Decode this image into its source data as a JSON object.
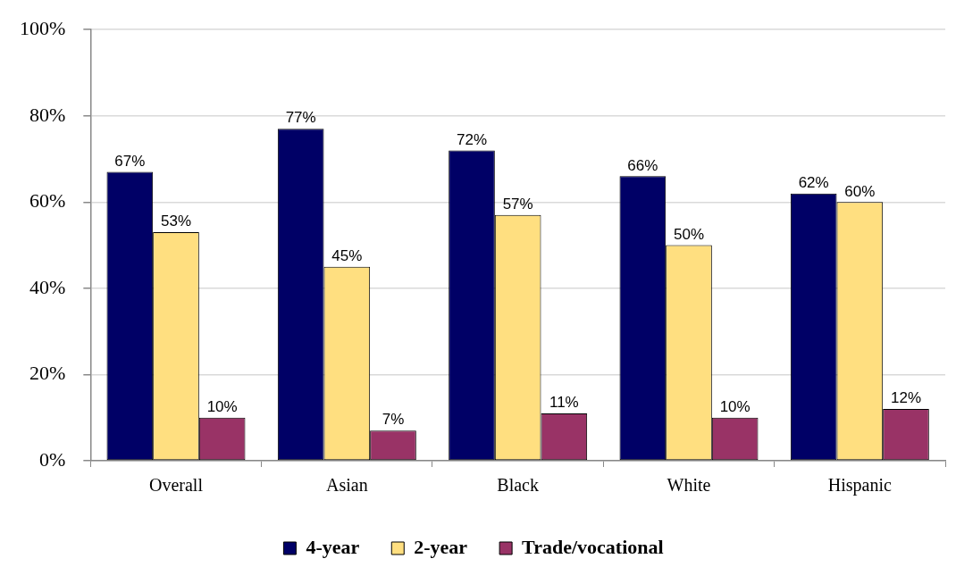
{
  "chart_data": {
    "type": "bar",
    "categories": [
      "Overall",
      "Asian",
      "Black",
      "White",
      "Hispanic"
    ],
    "series": [
      {
        "name": "4-year",
        "color": "#000066",
        "values": [
          67,
          77,
          72,
          66,
          62
        ],
        "value_labels": [
          "67%",
          "77%",
          "72%",
          "66%",
          "62%"
        ]
      },
      {
        "name": "2-year",
        "color": "#ffdf80",
        "values": [
          53,
          45,
          57,
          50,
          60
        ],
        "value_labels": [
          "53%",
          "45%",
          "57%",
          "50%",
          "60%"
        ]
      },
      {
        "name": "Trade/vocational",
        "color": "#993366",
        "values": [
          10,
          7,
          11,
          10,
          12
        ],
        "value_labels": [
          "10%",
          "7%",
          "11%",
          "10%",
          "12%"
        ]
      }
    ],
    "ylim": [
      0,
      100
    ],
    "yticks": [
      {
        "value": 0,
        "label": "0%"
      },
      {
        "value": 20,
        "label": "20%"
      },
      {
        "value": 40,
        "label": "40%"
      },
      {
        "value": 60,
        "label": "60%"
      },
      {
        "value": 80,
        "label": "80%"
      },
      {
        "value": 100,
        "label": "100%"
      }
    ],
    "grid": "y",
    "legend": "bottom"
  }
}
